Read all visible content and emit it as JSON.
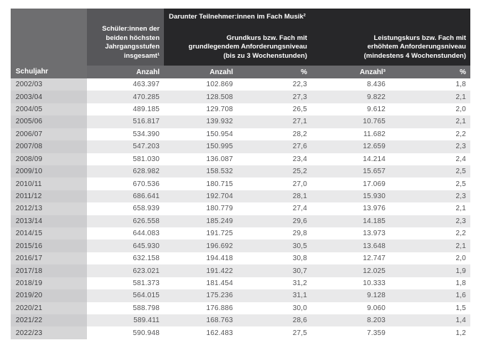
{
  "table": {
    "header": {
      "schuljahr_label": "Schuljahr",
      "total_students_title": "Schüler:innen der\nbeiden höchsten\nJahrgangsstufen\ninsgesamt¹",
      "group_title": "Darunter Teilnehmer:innen im Fach Musik²",
      "grundkurs_title": "Grundkurs bzw. Fach mit\ngrundlegendem Anforderungsniveau\n(bis zu 3 Wochenstunden)",
      "leistungskurs_title": "Leistungskurs bzw. Fach mit\nerhöhtem Anforderungsniveau\n(mindestens 4 Wochenstunden)",
      "band_labels": [
        "Anzahl",
        "Anzahl",
        "%",
        "Anzahl³",
        "%"
      ]
    },
    "columns": [
      "Schuljahr",
      "Schüler:innen insgesamt Anzahl",
      "Grundkurs Anzahl",
      "Grundkurs %",
      "Leistungskurs Anzahl³",
      "Leistungskurs %"
    ],
    "rows": [
      [
        "2002/03",
        "463.397",
        "102.869",
        "22,3",
        "8.436",
        "1,8"
      ],
      [
        "2003/04",
        "470.285",
        "128.508",
        "27,3",
        "9.822",
        "2,1"
      ],
      [
        "2004/05",
        "489.185",
        "129.708",
        "26,5",
        "9.612",
        "2,0"
      ],
      [
        "2005/06",
        "516.817",
        "139.932",
        "27,1",
        "10.765",
        "2,1"
      ],
      [
        "2006/07",
        "534.390",
        "150.954",
        "28,2",
        "11.682",
        "2,2"
      ],
      [
        "2007/08",
        "547.203",
        "150.995",
        "27,6",
        "12.659",
        "2,3"
      ],
      [
        "2008/09",
        "581.030",
        "136.087",
        "23,4",
        "14.214",
        "2,4"
      ],
      [
        "2009/10",
        "628.982",
        "158.532",
        "25,2",
        "15.657",
        "2,5"
      ],
      [
        "2010/11",
        "670.536",
        "180.715",
        "27,0",
        "17.069",
        "2,5"
      ],
      [
        "2011/12",
        "686.641",
        "192.704",
        "28,1",
        "15.930",
        "2,3"
      ],
      [
        "2012/13",
        "658.939",
        "180.779",
        "27,4",
        "13.976",
        "2,1"
      ],
      [
        "2013/14",
        "626.558",
        "185.249",
        "29,6",
        "14.185",
        "2,3"
      ],
      [
        "2014/15",
        "644.083",
        "191.725",
        "29,8",
        "13.973",
        "2,2"
      ],
      [
        "2015/16",
        "645.930",
        "196.692",
        "30,5",
        "13.648",
        "2,1"
      ],
      [
        "2016/17",
        "632.158",
        "194.418",
        "30,8",
        "12.747",
        "2,0"
      ],
      [
        "2017/18",
        "623.021",
        "191.422",
        "30,7",
        "12.025",
        "1,9"
      ],
      [
        "2018/19",
        "581.373",
        "181.454",
        "31,2",
        "10.333",
        "1,8"
      ],
      [
        "2019/20",
        "564.015",
        "175.236",
        "31,1",
        "9.128",
        "1,6"
      ],
      [
        "2020/21",
        "588.798",
        "176.886",
        "30,0",
        "9.060",
        "1,5"
      ],
      [
        "2021/22",
        "589.411",
        "168.763",
        "28,6",
        "8.203",
        "1,4"
      ],
      [
        "2022/23",
        "590.948",
        "162.483",
        "27,5",
        "7.359",
        "1,2"
      ]
    ],
    "colors": {
      "header_dark": "#272729",
      "header_gray_total": "#57575a",
      "header_gray_corner": "#6e6e70",
      "band_gray": "#69696c",
      "year_cell_gray": "#d2d2d3",
      "row_stripe": "#e9e9ea",
      "value_text": "#545456"
    }
  }
}
